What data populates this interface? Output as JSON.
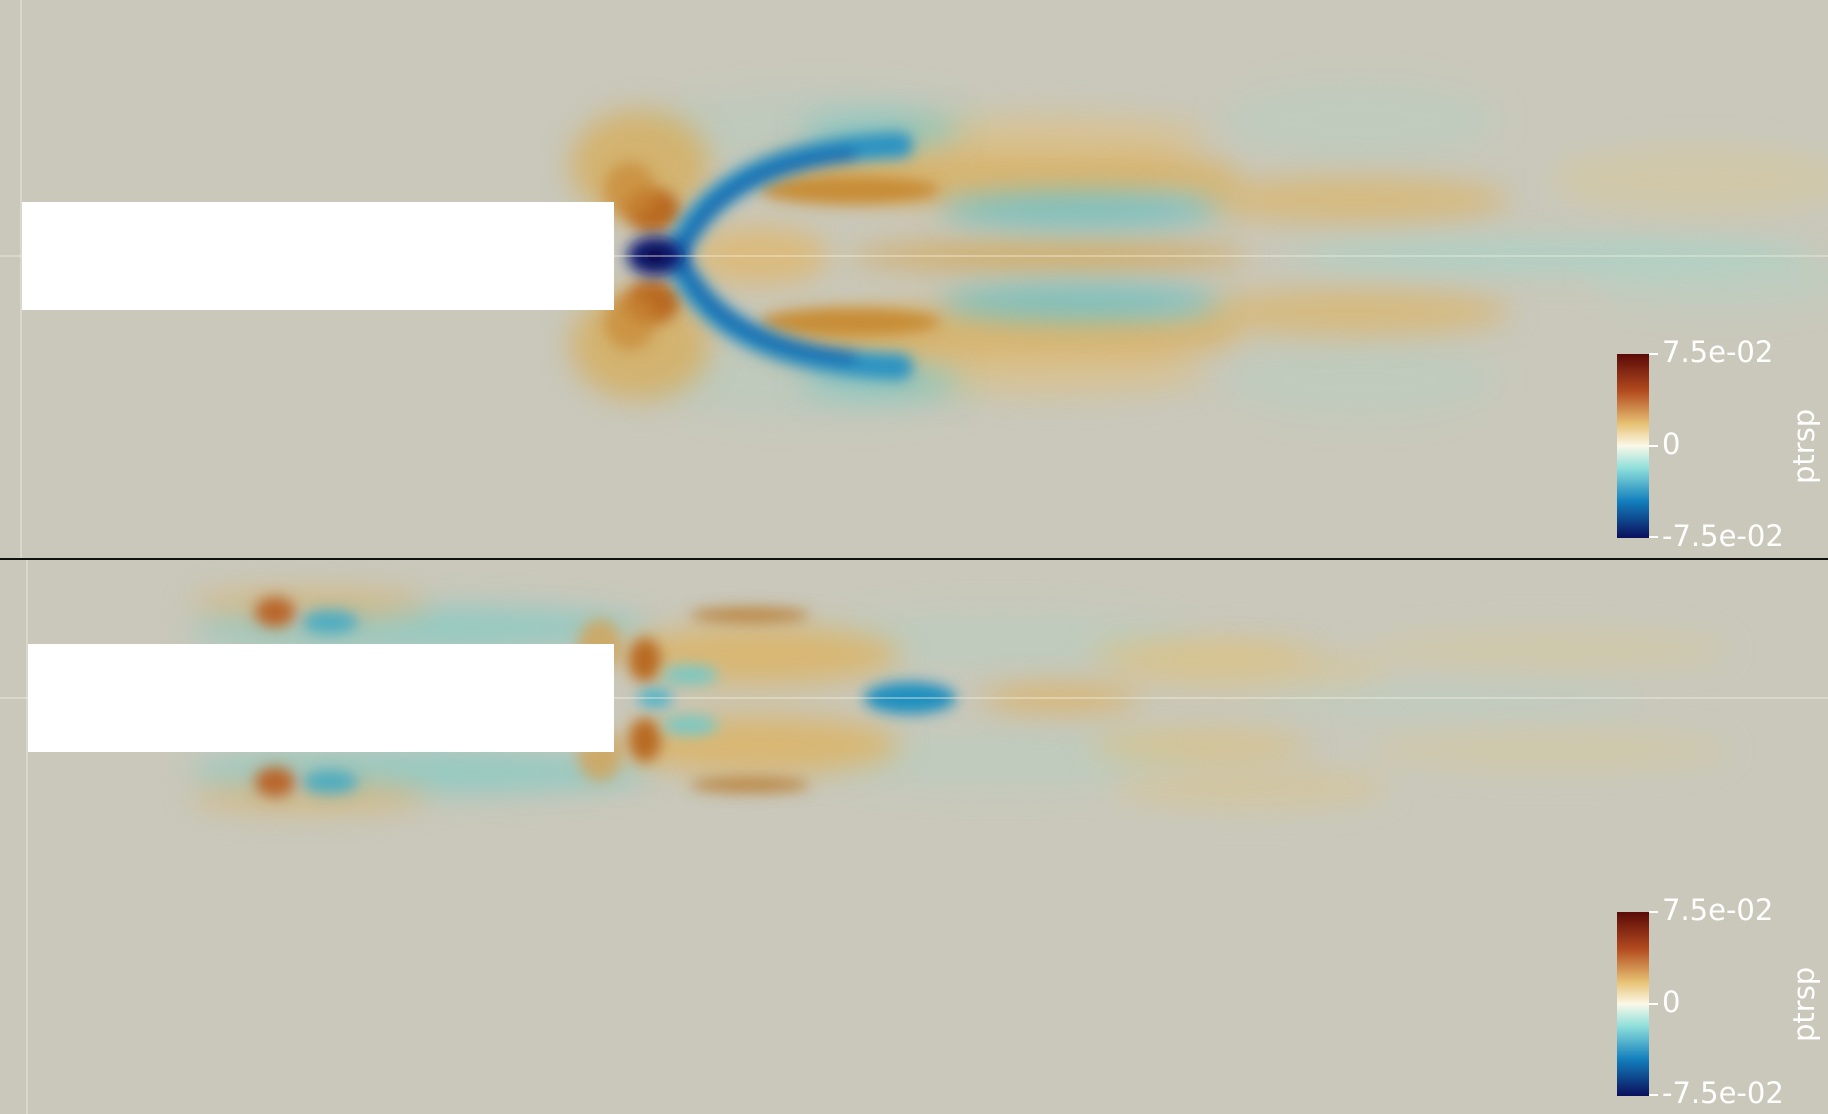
{
  "colors": {
    "background": "#c9c8bb",
    "body": "#ffffff",
    "positive_strong": "#6b0f0a",
    "positive_mid": "#c5762b",
    "positive_light": "#e3c47a",
    "neutral": "#f3f1e4",
    "negative_light": "#9fd8cf",
    "negative_mid": "#1c8fbf",
    "negative_strong": "#0a1a6e"
  },
  "panels": [
    {
      "colorbar": {
        "max_label": "7.5e-02",
        "mid_label": "0",
        "min_label": "-7.5e-02",
        "title": "ptrsp"
      }
    },
    {
      "colorbar": {
        "max_label": "7.5e-02",
        "mid_label": "0",
        "min_label": "-7.5e-02",
        "title": "ptrsp"
      }
    }
  ]
}
